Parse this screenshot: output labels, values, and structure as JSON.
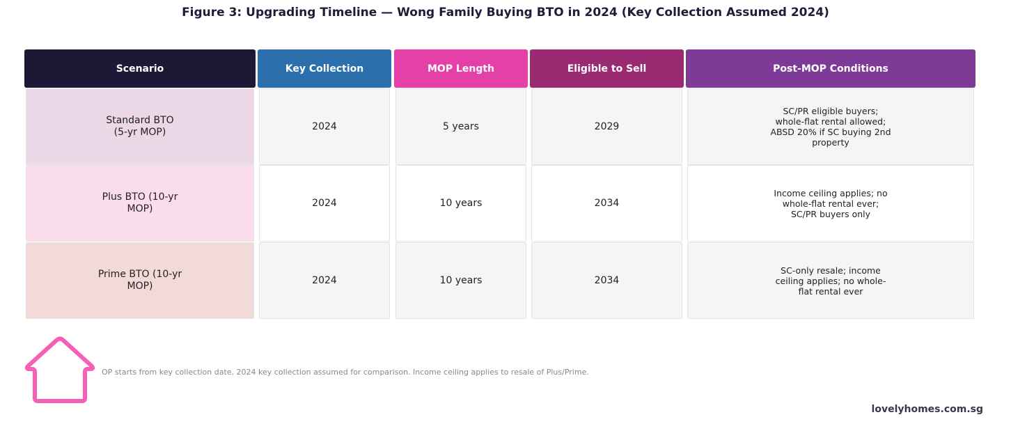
{
  "title": "Figure 3: Upgrading Timeline — Wong Family Buying BTO in 2024 (Key Collection Assumed 2024)",
  "table": {
    "headers": [
      {
        "label": "Scenario",
        "color": "#1c1835"
      },
      {
        "label": "Key Collection",
        "color": "#2b6fad"
      },
      {
        "label": "MOP Length",
        "color": "#e540a7"
      },
      {
        "label": "Eligible to Sell",
        "color": "#9a2a72"
      },
      {
        "label": "Post-MOP Conditions",
        "color": "#7e3a97"
      }
    ],
    "rows": [
      {
        "scenario": "Standard BTO\n(5-yr MOP)",
        "scenario_color": "#ecd8e6",
        "stripe_color": "#f5f5f8",
        "key_collection": "2024",
        "mop_length": "5 years",
        "eligible_to_sell": "2029",
        "conditions": "SC/PR eligible buyers;\nwhole-flat rental allowed;\nABSD 20% if SC buying 2nd\nproperty"
      },
      {
        "scenario": "Plus BTO (10-yr\nMOP)",
        "scenario_color": "#fbdcec",
        "stripe_color": "#ffffff",
        "key_collection": "2024",
        "mop_length": "10 years",
        "eligible_to_sell": "2034",
        "conditions": "Income ceiling applies; no\nwhole-flat rental ever;\nSC/PR buyers only"
      },
      {
        "scenario": "Prime BTO (10-yr\nMOP)",
        "scenario_color": "#f2dad8",
        "stripe_color": "#f5f5f8",
        "key_collection": "2024",
        "mop_length": "10 years",
        "eligible_to_sell": "2034",
        "conditions": "SC-only resale; income\nceiling applies; no whole-\nflat rental ever"
      }
    ]
  },
  "footnote": "OP starts from key collection date. 2024 key collection assumed for comparison. Income ceiling applies to resale of Plus/Prime.",
  "brand": "lovelyhomes.com.sg",
  "logo": {
    "icon": "house-icon",
    "color": "#f55fb5"
  }
}
